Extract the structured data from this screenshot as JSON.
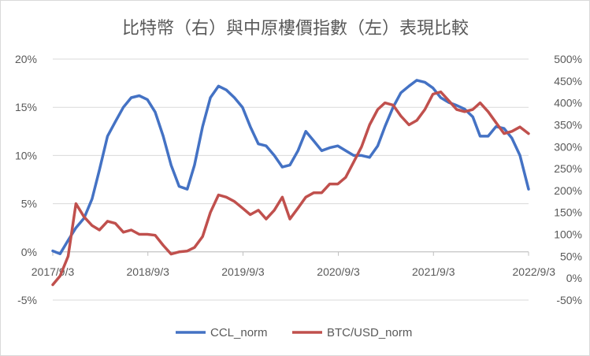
{
  "chart_data": {
    "type": "line",
    "title": "比特幣（右）與中原樓價指數（左）表現比較",
    "xlabel": "",
    "ylabel_left": "",
    "ylabel_right": "",
    "x_ticks": [
      "2017/9/3",
      "2018/9/3",
      "2019/9/3",
      "2020/9/3",
      "2021/9/3",
      "2022/9/3"
    ],
    "y_left_ticks": [
      "20%",
      "15%",
      "10%",
      "5%",
      "0%",
      "-5%"
    ],
    "y_right_ticks": [
      "500%",
      "450%",
      "400%",
      "350%",
      "300%",
      "250%",
      "200%",
      "150%",
      "100%",
      "50%",
      "0%",
      "-50%"
    ],
    "ylim_left": [
      -0.05,
      0.2
    ],
    "ylim_right": [
      -0.5,
      5.0
    ],
    "grid": true,
    "legend_position": "bottom",
    "series": [
      {
        "name": "CCL_norm",
        "axis": "left",
        "color": "#4472c4",
        "points": [
          [
            "2017-09-03",
            0.001
          ],
          [
            "2017-10-01",
            -0.002
          ],
          [
            "2017-11-01",
            0.012
          ],
          [
            "2017-12-01",
            0.025
          ],
          [
            "2018-01-01",
            0.035
          ],
          [
            "2018-02-01",
            0.055
          ],
          [
            "2018-03-01",
            0.085
          ],
          [
            "2018-04-01",
            0.12
          ],
          [
            "2018-05-01",
            0.135
          ],
          [
            "2018-06-01",
            0.15
          ],
          [
            "2018-07-01",
            0.16
          ],
          [
            "2018-08-01",
            0.162
          ],
          [
            "2018-09-01",
            0.158
          ],
          [
            "2018-10-01",
            0.145
          ],
          [
            "2018-11-01",
            0.12
          ],
          [
            "2018-12-01",
            0.09
          ],
          [
            "2019-01-01",
            0.068
          ],
          [
            "2019-02-01",
            0.065
          ],
          [
            "2019-03-01",
            0.09
          ],
          [
            "2019-04-01",
            0.13
          ],
          [
            "2019-05-01",
            0.16
          ],
          [
            "2019-06-01",
            0.172
          ],
          [
            "2019-07-01",
            0.168
          ],
          [
            "2019-08-01",
            0.16
          ],
          [
            "2019-09-01",
            0.15
          ],
          [
            "2019-10-01",
            0.13
          ],
          [
            "2019-11-01",
            0.112
          ],
          [
            "2019-12-01",
            0.11
          ],
          [
            "2020-01-01",
            0.1
          ],
          [
            "2020-02-01",
            0.088
          ],
          [
            "2020-03-01",
            0.09
          ],
          [
            "2020-04-01",
            0.105
          ],
          [
            "2020-05-01",
            0.125
          ],
          [
            "2020-06-01",
            0.115
          ],
          [
            "2020-07-01",
            0.105
          ],
          [
            "2020-08-01",
            0.108
          ],
          [
            "2020-09-01",
            0.11
          ],
          [
            "2020-10-01",
            0.105
          ],
          [
            "2020-11-01",
            0.1
          ],
          [
            "2020-12-01",
            0.1
          ],
          [
            "2021-01-01",
            0.098
          ],
          [
            "2021-02-01",
            0.11
          ],
          [
            "2021-03-01",
            0.13
          ],
          [
            "2021-04-01",
            0.15
          ],
          [
            "2021-05-01",
            0.165
          ],
          [
            "2021-06-01",
            0.172
          ],
          [
            "2021-07-01",
            0.178
          ],
          [
            "2021-08-01",
            0.176
          ],
          [
            "2021-09-01",
            0.17
          ],
          [
            "2021-10-01",
            0.16
          ],
          [
            "2021-11-01",
            0.155
          ],
          [
            "2021-12-01",
            0.152
          ],
          [
            "2022-01-01",
            0.148
          ],
          [
            "2022-02-01",
            0.14
          ],
          [
            "2022-03-01",
            0.12
          ],
          [
            "2022-04-01",
            0.12
          ],
          [
            "2022-05-01",
            0.13
          ],
          [
            "2022-06-01",
            0.128
          ],
          [
            "2022-07-01",
            0.118
          ],
          [
            "2022-08-01",
            0.1
          ],
          [
            "2022-09-03",
            0.065
          ]
        ]
      },
      {
        "name": "BTC/USD_norm",
        "axis": "right",
        "color": "#c0504d",
        "points": [
          [
            "2017-09-03",
            -0.15
          ],
          [
            "2017-10-01",
            0.05
          ],
          [
            "2017-11-01",
            0.5
          ],
          [
            "2017-12-01",
            1.7
          ],
          [
            "2018-01-01",
            1.4
          ],
          [
            "2018-02-01",
            1.2
          ],
          [
            "2018-03-01",
            1.1
          ],
          [
            "2018-04-01",
            1.3
          ],
          [
            "2018-05-01",
            1.25
          ],
          [
            "2018-06-01",
            1.05
          ],
          [
            "2018-07-01",
            1.1
          ],
          [
            "2018-08-01",
            1.0
          ],
          [
            "2018-09-01",
            1.0
          ],
          [
            "2018-10-01",
            0.98
          ],
          [
            "2018-11-01",
            0.75
          ],
          [
            "2018-12-01",
            0.55
          ],
          [
            "2019-01-01",
            0.6
          ],
          [
            "2019-02-01",
            0.62
          ],
          [
            "2019-03-01",
            0.7
          ],
          [
            "2019-04-01",
            0.95
          ],
          [
            "2019-05-01",
            1.5
          ],
          [
            "2019-06-01",
            1.9
          ],
          [
            "2019-07-01",
            1.85
          ],
          [
            "2019-08-01",
            1.75
          ],
          [
            "2019-09-01",
            1.6
          ],
          [
            "2019-10-01",
            1.45
          ],
          [
            "2019-11-01",
            1.55
          ],
          [
            "2019-12-01",
            1.35
          ],
          [
            "2020-01-01",
            1.55
          ],
          [
            "2020-02-01",
            1.85
          ],
          [
            "2020-03-01",
            1.35
          ],
          [
            "2020-04-01",
            1.6
          ],
          [
            "2020-05-01",
            1.85
          ],
          [
            "2020-06-01",
            1.95
          ],
          [
            "2020-07-01",
            1.95
          ],
          [
            "2020-08-01",
            2.15
          ],
          [
            "2020-09-01",
            2.15
          ],
          [
            "2020-10-01",
            2.3
          ],
          [
            "2020-11-01",
            2.65
          ],
          [
            "2020-12-01",
            3.0
          ],
          [
            "2021-01-01",
            3.5
          ],
          [
            "2021-02-01",
            3.85
          ],
          [
            "2021-03-01",
            4.0
          ],
          [
            "2021-04-01",
            3.95
          ],
          [
            "2021-05-01",
            3.7
          ],
          [
            "2021-06-01",
            3.5
          ],
          [
            "2021-07-01",
            3.6
          ],
          [
            "2021-08-01",
            3.85
          ],
          [
            "2021-09-01",
            4.2
          ],
          [
            "2021-10-01",
            4.25
          ],
          [
            "2021-11-01",
            4.05
          ],
          [
            "2021-12-01",
            3.85
          ],
          [
            "2022-01-01",
            3.8
          ],
          [
            "2022-02-01",
            3.85
          ],
          [
            "2022-03-01",
            4.0
          ],
          [
            "2022-04-01",
            3.8
          ],
          [
            "2022-05-01",
            3.55
          ],
          [
            "2022-06-01",
            3.3
          ],
          [
            "2022-07-01",
            3.35
          ],
          [
            "2022-08-01",
            3.45
          ],
          [
            "2022-09-03",
            3.3
          ]
        ]
      }
    ]
  }
}
